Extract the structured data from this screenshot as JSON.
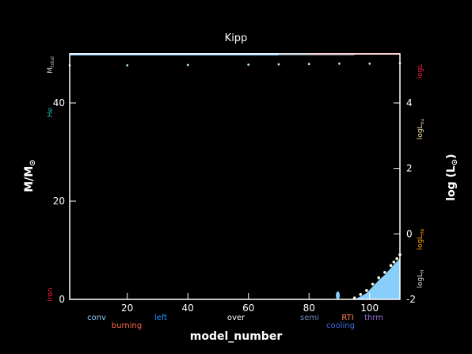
{
  "chart_data": {
    "type": "area",
    "title": "Kipp",
    "xlabel": "model_number",
    "ylabel_left": "M/M",
    "ylabel_left_sub": "⊙",
    "ylabel_right": "log (L",
    "ylabel_right_sub": "⊙",
    "ylabel_right_close": ")",
    "xlim": [
      1,
      110
    ],
    "ylim_left": [
      0,
      50
    ],
    "ylim_right": [
      -2,
      5.5
    ],
    "x_ticks": [
      20,
      40,
      60,
      80,
      100
    ],
    "y_ticks_left": [
      0,
      20,
      40
    ],
    "y_ticks_right": [
      -2,
      0,
      2,
      4
    ],
    "grid": false,
    "mtotal": 50,
    "side_labels_left": {
      "mtotal": "M",
      "mtotal_sub": "total",
      "he": "He",
      "iron": "iron"
    },
    "side_labels_right": {
      "logL": "logL",
      "logLnu": "logL",
      "logLnu_sub": "nu",
      "logLhe": "logL",
      "logLhe_sub": "He",
      "logLh": "logL",
      "logLh_sub": "H"
    },
    "legend": [
      {
        "name": "conv",
        "color": "#87cefa"
      },
      {
        "name": "burning",
        "color": "#ff6347"
      },
      {
        "name": "left",
        "color": "#1e90ff"
      },
      {
        "name": "over",
        "color": "#ffffff"
      },
      {
        "name": "semi",
        "color": "#6a8bbf"
      },
      {
        "name": "cooling",
        "color": "#4169e1"
      },
      {
        "name": "RTI",
        "color": "#ff7f50"
      },
      {
        "name": "thrm",
        "color": "#9370db"
      }
    ],
    "convective_core": {
      "x": [
        95,
        97,
        99,
        101,
        103,
        105,
        107,
        108,
        109,
        110
      ],
      "top": [
        0.0,
        0.6,
        1.3,
        2.6,
        3.9,
        5.0,
        6.4,
        7.1,
        7.7,
        8.4
      ]
    },
    "overshoot_line": {
      "x": [
        95,
        97,
        99,
        101,
        103,
        105,
        107,
        108,
        109,
        110
      ],
      "y": [
        0.3,
        1.0,
        1.8,
        3.1,
        4.4,
        5.5,
        6.9,
        7.6,
        8.3,
        9.1
      ]
    },
    "lum_points_L": {
      "x": [
        1,
        20,
        40,
        60,
        70,
        80,
        90,
        100,
        110
      ],
      "y": [
        5.15,
        5.15,
        5.16,
        5.17,
        5.18,
        5.19,
        5.2,
        5.2,
        5.21
      ]
    },
    "small_blob": {
      "x": 89.5,
      "y": 0.8
    },
    "colors": {
      "conv": "#87cefa",
      "lum": "#ff4f5e",
      "semi": "#6b7b8c",
      "over": "#fff8dc",
      "he_label": "#20b2aa",
      "lnu": "#ffdead",
      "lhe": "#ffa500",
      "iron": "#ff1f3f",
      "mtotal": "#c0c0c0"
    }
  }
}
